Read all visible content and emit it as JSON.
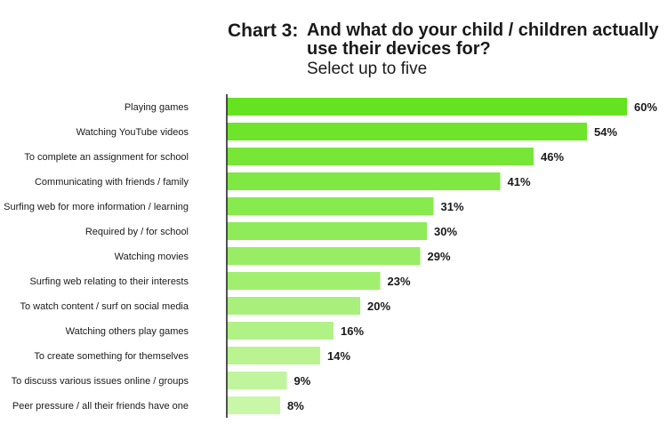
{
  "title": {
    "label": "Chart 3:",
    "main": "And what do your child / children actually use their devices for?",
    "subtitle": "Select up to five"
  },
  "colors": {
    "bar_start": "#66e320",
    "bar_end": "#c9f7a8",
    "axis": "#1a1a1a"
  },
  "chart_data": {
    "type": "bar",
    "orientation": "horizontal",
    "title": "And what do your child / children actually use their devices for?",
    "subtitle": "Select up to five",
    "value_suffix": "%",
    "categories": [
      "Playing games",
      "Watching YouTube videos",
      "To complete an assignment for school",
      "Communicating with friends / family",
      "Surfing web for more information / learning",
      "Required by / for school",
      "Watching movies",
      "Surfing web relating to their interests",
      "To watch content / surf on social media",
      "Watching others play games",
      "To create something for themselves",
      "To discuss various issues online / groups",
      "Peer pressure / all their friends have one"
    ],
    "values": [
      60,
      54,
      46,
      41,
      31,
      30,
      29,
      23,
      20,
      16,
      14,
      9,
      8
    ],
    "labels": [
      "60%",
      "54%",
      "46%",
      "41%",
      "31%",
      "30%",
      "29%",
      "23%",
      "20%",
      "16%",
      "14%",
      "9%",
      "8%"
    ],
    "xlim": [
      0,
      60
    ],
    "grid": false,
    "legend": "none"
  }
}
